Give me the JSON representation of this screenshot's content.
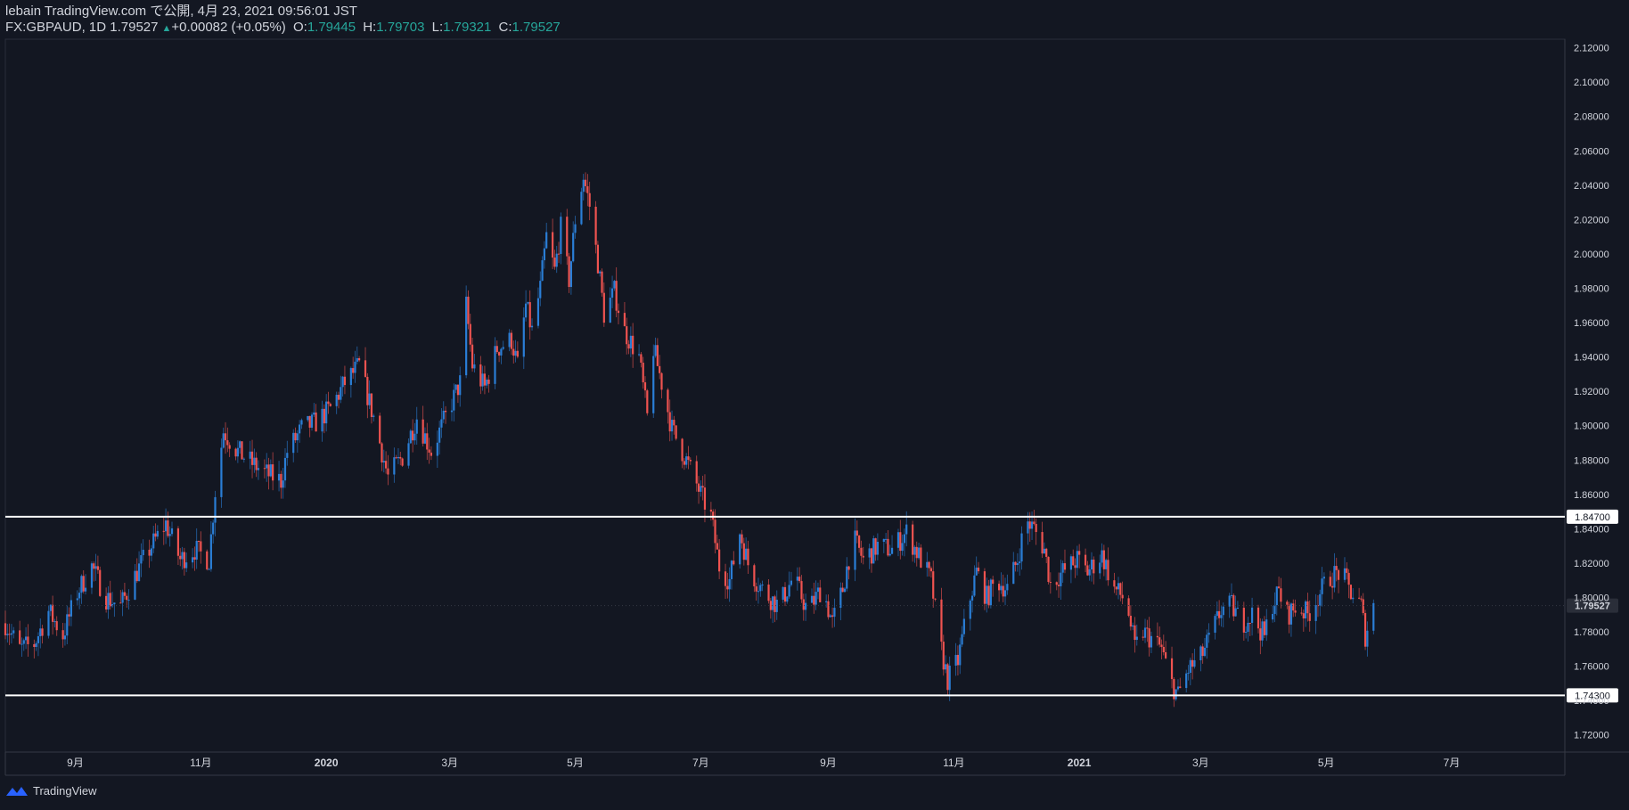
{
  "header": {
    "line1": "lebain TradingView.com で公開, 4月 23, 2021 09:56:01 JST",
    "symbol": "FX:GBPAUD, 1D 1.79527",
    "arrow": "▲",
    "change": "+0.00082 (+0.05%)",
    "o_label": "O:",
    "o_value": "1.79445",
    "h_label": "H:",
    "h_value": "1.79703",
    "l_label": "L:",
    "l_value": "1.79321",
    "c_label": "C:",
    "c_value": "1.79527"
  },
  "footer": {
    "brand": "TradingView"
  },
  "colors": {
    "background": "#131722",
    "up": "#2a7ed6",
    "down": "#ef5350",
    "text": "#d1d4dc",
    "axis": "#787b86",
    "level": "#ffffff"
  },
  "chart_data": {
    "type": "candlestick",
    "symbol": "FX:GBPAUD",
    "interval": "1D",
    "y_axis": {
      "range": [
        1.71,
        2.125
      ],
      "ticks": [
        "1.72000",
        "1.74000",
        "1.76000",
        "1.78000",
        "1.80000",
        "1.82000",
        "1.84000",
        "1.86000",
        "1.88000",
        "1.90000",
        "1.92000",
        "1.94000",
        "1.96000",
        "1.98000",
        "2.00000",
        "2.02000",
        "2.04000",
        "2.06000",
        "2.08000",
        "2.10000",
        "2.12000"
      ]
    },
    "x_axis": {
      "range": [
        "2019-07-29",
        "2021-08-25"
      ],
      "ticks": [
        {
          "date": "2019-09-01",
          "label": "9月"
        },
        {
          "date": "2019-11-01",
          "label": "11月"
        },
        {
          "date": "2020-01-01",
          "label": "2020"
        },
        {
          "date": "2020-03-01",
          "label": "3月"
        },
        {
          "date": "2020-05-01",
          "label": "5月"
        },
        {
          "date": "2020-07-01",
          "label": "7月"
        },
        {
          "date": "2020-09-01",
          "label": "9月"
        },
        {
          "date": "2020-11-01",
          "label": "11月"
        },
        {
          "date": "2021-01-01",
          "label": "2021"
        },
        {
          "date": "2021-03-01",
          "label": "3月"
        },
        {
          "date": "2021-05-01",
          "label": "5月"
        },
        {
          "date": "2021-07-01",
          "label": "7月"
        }
      ]
    },
    "horizontal_levels": [
      {
        "value": 1.847,
        "label": "1.84700"
      },
      {
        "value": 1.743,
        "label": "1.74300"
      }
    ],
    "last_price": {
      "value": 1.79527,
      "label": "1.79527"
    },
    "close_path": [
      [
        "2019-07-29",
        1.785
      ],
      [
        "2019-08-05",
        1.77
      ],
      [
        "2019-08-12",
        1.773
      ],
      [
        "2019-08-19",
        1.792
      ],
      [
        "2019-08-26",
        1.778
      ],
      [
        "2019-09-02",
        1.803
      ],
      [
        "2019-09-09",
        1.818
      ],
      [
        "2019-09-16",
        1.8
      ],
      [
        "2019-09-23",
        1.795
      ],
      [
        "2019-10-01",
        1.815
      ],
      [
        "2019-10-08",
        1.83
      ],
      [
        "2019-10-15",
        1.843
      ],
      [
        "2019-10-22",
        1.822
      ],
      [
        "2019-10-29",
        1.828
      ],
      [
        "2019-11-05",
        1.822
      ],
      [
        "2019-11-08",
        1.862
      ],
      [
        "2019-11-12",
        1.897
      ],
      [
        "2019-11-19",
        1.885
      ],
      [
        "2019-11-26",
        1.878
      ],
      [
        "2019-12-03",
        1.872
      ],
      [
        "2019-12-10",
        1.868
      ],
      [
        "2019-12-13",
        1.885
      ],
      [
        "2019-12-20",
        1.898
      ],
      [
        "2019-12-27",
        1.902
      ],
      [
        "2020-01-03",
        1.91
      ],
      [
        "2020-01-10",
        1.925
      ],
      [
        "2020-01-17",
        1.935
      ],
      [
        "2020-01-24",
        1.905
      ],
      [
        "2020-01-31",
        1.87
      ],
      [
        "2020-02-07",
        1.882
      ],
      [
        "2020-02-14",
        1.905
      ],
      [
        "2020-02-21",
        1.885
      ],
      [
        "2020-02-28",
        1.905
      ],
      [
        "2020-03-06",
        1.925
      ],
      [
        "2020-03-09",
        1.97
      ],
      [
        "2020-03-12",
        1.935
      ],
      [
        "2020-03-18",
        1.922
      ],
      [
        "2020-03-24",
        1.945
      ],
      [
        "2020-03-31",
        1.95
      ],
      [
        "2020-04-03",
        1.935
      ],
      [
        "2020-04-07",
        1.97
      ],
      [
        "2020-04-10",
        1.955
      ],
      [
        "2020-04-14",
        1.98
      ],
      [
        "2020-04-17",
        2.01
      ],
      [
        "2020-04-21",
        1.99
      ],
      [
        "2020-04-24",
        2.015
      ],
      [
        "2020-04-28",
        1.985
      ],
      [
        "2020-05-01",
        2.02
      ],
      [
        "2020-05-05",
        2.045
      ],
      [
        "2020-05-08",
        2.028
      ],
      [
        "2020-05-12",
        1.995
      ],
      [
        "2020-05-15",
        1.965
      ],
      [
        "2020-05-20",
        1.978
      ],
      [
        "2020-05-25",
        1.955
      ],
      [
        "2020-06-01",
        1.94
      ],
      [
        "2020-06-05",
        1.905
      ],
      [
        "2020-06-08",
        1.945
      ],
      [
        "2020-06-12",
        1.925
      ],
      [
        "2020-06-17",
        1.898
      ],
      [
        "2020-06-24",
        1.88
      ],
      [
        "2020-07-01",
        1.86
      ],
      [
        "2020-07-06",
        1.847
      ],
      [
        "2020-07-10",
        1.818
      ],
      [
        "2020-07-15",
        1.81
      ],
      [
        "2020-07-20",
        1.838
      ],
      [
        "2020-07-25",
        1.815
      ],
      [
        "2020-08-01",
        1.803
      ],
      [
        "2020-08-08",
        1.795
      ],
      [
        "2020-08-15",
        1.812
      ],
      [
        "2020-08-22",
        1.792
      ],
      [
        "2020-08-29",
        1.806
      ],
      [
        "2020-09-03",
        1.785
      ],
      [
        "2020-09-08",
        1.805
      ],
      [
        "2020-09-13",
        1.835
      ],
      [
        "2020-09-18",
        1.822
      ],
      [
        "2020-09-25",
        1.83
      ],
      [
        "2020-10-02",
        1.828
      ],
      [
        "2020-10-09",
        1.838
      ],
      [
        "2020-10-16",
        1.822
      ],
      [
        "2020-10-21",
        1.81
      ],
      [
        "2020-10-25",
        1.775
      ],
      [
        "2020-10-29",
        1.752
      ],
      [
        "2020-11-03",
        1.763
      ],
      [
        "2020-11-08",
        1.795
      ],
      [
        "2020-11-12",
        1.815
      ],
      [
        "2020-11-17",
        1.8
      ],
      [
        "2020-11-22",
        1.81
      ],
      [
        "2020-11-27",
        1.805
      ],
      [
        "2020-12-02",
        1.822
      ],
      [
        "2020-12-06",
        1.845
      ],
      [
        "2020-12-10",
        1.84
      ],
      [
        "2020-12-15",
        1.828
      ],
      [
        "2020-12-18",
        1.808
      ],
      [
        "2020-12-24",
        1.815
      ],
      [
        "2020-12-31",
        1.822
      ],
      [
        "2021-01-05",
        1.815
      ],
      [
        "2021-01-12",
        1.825
      ],
      [
        "2021-01-18",
        1.805
      ],
      [
        "2021-01-24",
        1.798
      ],
      [
        "2021-01-28",
        1.77
      ],
      [
        "2021-02-01",
        1.78
      ],
      [
        "2021-02-06",
        1.775
      ],
      [
        "2021-02-10",
        1.77
      ],
      [
        "2021-02-14",
        1.752
      ],
      [
        "2021-02-18",
        1.743
      ],
      [
        "2021-02-23",
        1.758
      ],
      [
        "2021-03-01",
        1.765
      ],
      [
        "2021-03-06",
        1.778
      ],
      [
        "2021-03-11",
        1.793
      ],
      [
        "2021-03-16",
        1.795
      ],
      [
        "2021-03-21",
        1.785
      ],
      [
        "2021-03-26",
        1.79
      ],
      [
        "2021-04-01",
        1.777
      ],
      [
        "2021-04-04",
        1.795
      ],
      [
        "2021-04-08",
        1.803
      ],
      [
        "2021-04-12",
        1.79
      ],
      [
        "2021-04-17",
        1.795
      ],
      [
        "2021-04-22",
        1.79
      ],
      [
        "2021-04-28",
        1.803
      ],
      [
        "2021-05-03",
        1.812
      ],
      [
        "2021-05-08",
        1.815
      ],
      [
        "2021-05-13",
        1.803
      ],
      [
        "2021-05-18",
        1.795
      ],
      [
        "2021-05-20",
        1.778
      ],
      [
        "2021-05-24",
        1.795
      ]
    ]
  }
}
